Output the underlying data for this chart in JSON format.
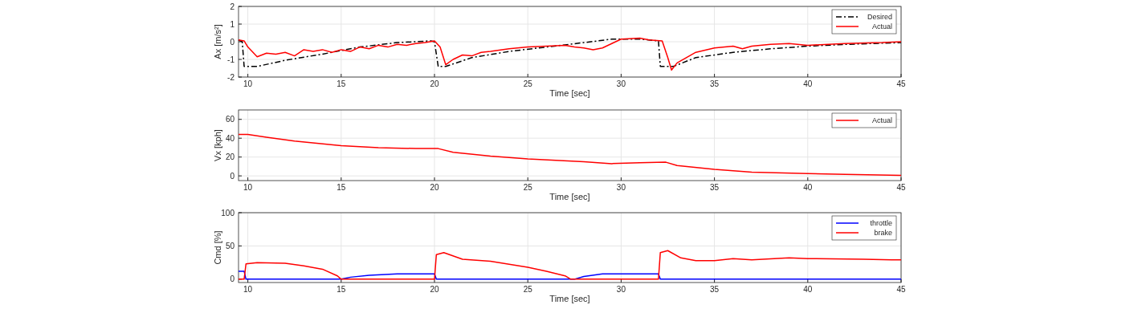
{
  "chart_data": [
    {
      "type": "line",
      "xlabel": "Time [sec]",
      "ylabel": "Ax [m/s²]",
      "xlim": [
        9.5,
        45
      ],
      "ylim": [
        -2,
        2
      ],
      "xticks": [
        10,
        15,
        20,
        25,
        30,
        35,
        40,
        45
      ],
      "yticks": [
        -2,
        -1,
        0,
        1,
        2
      ],
      "grid": true,
      "legend": "top right",
      "series": [
        {
          "name": "Desired",
          "color": "#000000",
          "line_style": "dashed",
          "x": [
            9.5,
            9.7,
            9.8,
            10.5,
            12,
            14,
            16,
            18,
            19.8,
            20,
            20.2,
            20.6,
            22,
            24,
            26,
            28,
            29.5,
            31,
            32,
            32.1,
            32.8,
            34,
            36,
            38,
            40,
            42,
            45
          ],
          "values": [
            0.1,
            0.0,
            -1.4,
            -1.4,
            -1.05,
            -0.7,
            -0.3,
            -0.05,
            0.05,
            0.0,
            -1.4,
            -1.4,
            -0.9,
            -0.55,
            -0.3,
            -0.05,
            0.15,
            0.15,
            0.05,
            -1.4,
            -1.4,
            -0.9,
            -0.6,
            -0.4,
            -0.25,
            -0.15,
            -0.05
          ]
        },
        {
          "name": "Actual",
          "color": "#ff0000",
          "line_style": "solid",
          "x": [
            9.5,
            9.8,
            10,
            10.5,
            11,
            11.5,
            12,
            12.5,
            13,
            13.5,
            14,
            14.5,
            15,
            15.5,
            16,
            16.5,
            17,
            17.5,
            18,
            18.5,
            19,
            19.5,
            20,
            20.3,
            20.6,
            21,
            21.5,
            22,
            22.5,
            23,
            24,
            25,
            26,
            27,
            27.5,
            28,
            28.5,
            29,
            29.5,
            30,
            31,
            31.5,
            32.2,
            32.5,
            32.7,
            33,
            34,
            35,
            36,
            36.5,
            37,
            38,
            39,
            40,
            42,
            44,
            45
          ],
          "values": [
            0.1,
            0.05,
            -0.3,
            -0.85,
            -0.65,
            -0.7,
            -0.6,
            -0.8,
            -0.45,
            -0.55,
            -0.45,
            -0.6,
            -0.45,
            -0.55,
            -0.3,
            -0.4,
            -0.2,
            -0.3,
            -0.15,
            -0.2,
            -0.1,
            -0.05,
            0.05,
            -0.3,
            -1.3,
            -1.0,
            -0.75,
            -0.8,
            -0.6,
            -0.55,
            -0.4,
            -0.3,
            -0.25,
            -0.2,
            -0.3,
            -0.35,
            -0.45,
            -0.35,
            -0.1,
            0.15,
            0.2,
            0.1,
            0.05,
            -0.9,
            -1.6,
            -1.2,
            -0.6,
            -0.35,
            -0.25,
            -0.4,
            -0.25,
            -0.15,
            -0.1,
            -0.2,
            -0.1,
            -0.05,
            0
          ]
        }
      ]
    },
    {
      "type": "line",
      "xlabel": "Time [sec]",
      "ylabel": "Vx [kph]",
      "xlim": [
        9.5,
        45
      ],
      "ylim": [
        -5,
        70
      ],
      "xticks": [
        10,
        15,
        20,
        25,
        30,
        35,
        40,
        45
      ],
      "yticks": [
        0,
        20,
        40,
        60
      ],
      "grid": true,
      "legend": "top right",
      "series": [
        {
          "name": "Actual",
          "color": "#ff0000",
          "line_style": "solid",
          "x": [
            9.5,
            10,
            11,
            12.5,
            15,
            17,
            19,
            20.2,
            21,
            23,
            25,
            28,
            29.5,
            31,
            32.4,
            33,
            35,
            37,
            40,
            42,
            45
          ],
          "values": [
            44,
            44,
            41,
            37,
            32,
            30,
            29,
            29,
            25,
            21,
            18,
            15,
            13,
            14,
            14.5,
            11,
            7,
            4,
            2.5,
            1.5,
            0.5
          ]
        }
      ]
    },
    {
      "type": "line",
      "xlabel": "Time [sec]",
      "ylabel": "Cmd [%]",
      "xlim": [
        9.5,
        45
      ],
      "ylim": [
        -5,
        100
      ],
      "xticks": [
        10,
        15,
        20,
        25,
        30,
        35,
        40,
        45
      ],
      "yticks": [
        0,
        50,
        100
      ],
      "grid": true,
      "legend": "top right",
      "series": [
        {
          "name": "throttle",
          "color": "#0000ff",
          "line_style": "solid",
          "x": [
            9.5,
            9.8,
            9.9,
            15,
            15.5,
            16.5,
            18,
            20,
            20.1,
            27.5,
            28,
            29,
            32,
            32.1,
            45
          ],
          "values": [
            12,
            12,
            0,
            0,
            3,
            6,
            8,
            8,
            0,
            0,
            4,
            8,
            8,
            0,
            0
          ]
        },
        {
          "name": "brake",
          "color": "#ff0000",
          "line_style": "solid",
          "x": [
            9.5,
            9.8,
            9.9,
            10.5,
            12,
            13,
            14,
            14.8,
            15,
            20,
            20.1,
            20.5,
            21.5,
            23,
            25,
            26,
            27,
            27.3,
            32,
            32.1,
            32.5,
            33.2,
            34,
            35,
            36,
            37,
            39,
            40,
            43,
            44.5,
            45
          ],
          "values": [
            0,
            0,
            23,
            25,
            24,
            20,
            15,
            5,
            0,
            0,
            37,
            40,
            30,
            27,
            18,
            12,
            5,
            0,
            0,
            40,
            43,
            32,
            28,
            28,
            31,
            29,
            32,
            31,
            30,
            29,
            29
          ]
        }
      ]
    }
  ]
}
